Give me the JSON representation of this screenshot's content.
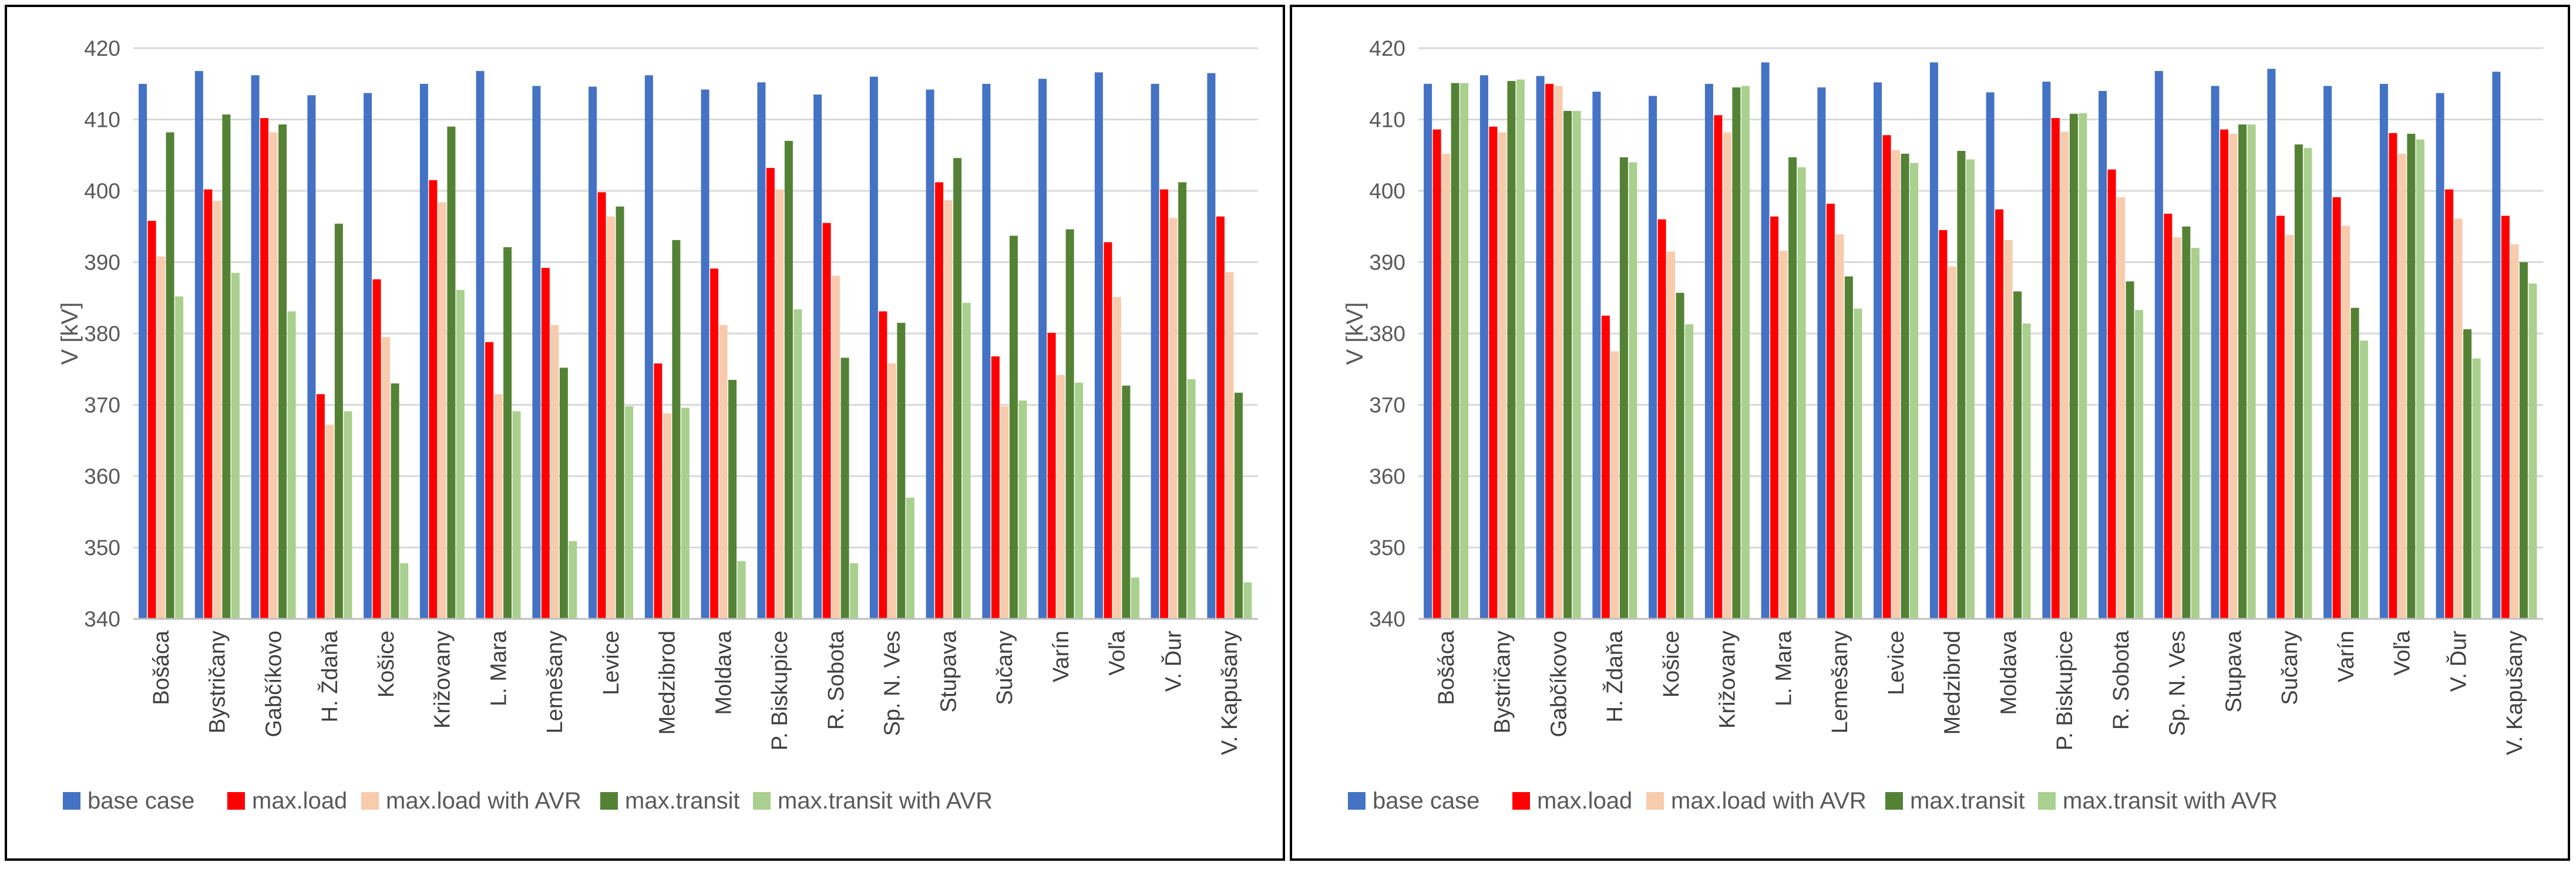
{
  "colors": {
    "base": "#4472C4",
    "max_load": "#FF0000",
    "max_load_avr": "#F8CBAD",
    "max_transit": "#548235",
    "max_transit_avr": "#A9D08E",
    "grid": "#D9D9D9",
    "text": "#595959"
  },
  "chart_data": [
    {
      "type": "bar",
      "ylabel": "V [kV]",
      "ylim": [
        340,
        420
      ],
      "yticks": [
        "340",
        "350",
        "360",
        "370",
        "380",
        "390",
        "400",
        "410",
        "420"
      ],
      "grid": true,
      "legend_position": "bottom",
      "categories": [
        "Bošáca",
        "Bystričany",
        "Gabčíkovo",
        "H. Ždaňa",
        "Košice",
        "Križovany",
        "L. Mara",
        "Lemešany",
        "Levice",
        "Medzibrod",
        "Moldava",
        "P. Biskupice",
        "R. Sobota",
        "Sp. N. Ves",
        "Stupava",
        "Sučany",
        "Varín",
        "Voľa",
        "V. Ďur",
        "V. Kapušany"
      ],
      "series": [
        {
          "name": "base case",
          "color_key": "base",
          "values": [
            415,
            416.8,
            416.2,
            413.4,
            413.7,
            415,
            416.8,
            414.7,
            414.6,
            416.2,
            414.2,
            415.2,
            413.5,
            416,
            414.2,
            415,
            415.7,
            416.6,
            415,
            416.5
          ]
        },
        {
          "name": "max.load",
          "color_key": "max_load",
          "values": [
            395.8,
            400.2,
            410.2,
            371.5,
            387.6,
            401.5,
            378.8,
            389.2,
            399.8,
            375.8,
            389.1,
            403.2,
            395.5,
            383.1,
            401.2,
            376.8,
            380.1,
            392.8,
            400.2,
            396.4
          ]
        },
        {
          "name": "max.load with AVR",
          "color_key": "max_load_avr",
          "values": [
            390.8,
            398.6,
            408.2,
            367.2,
            379.5,
            398.4,
            371.5,
            381.2,
            396.4,
            368.8,
            381.2,
            400.2,
            388.1,
            375.8,
            398.7,
            369.8,
            374.2,
            385.1,
            396.2,
            388.6
          ]
        },
        {
          "name": "max.transit",
          "color_key": "max_transit",
          "values": [
            408.2,
            410.7,
            409.3,
            395.4,
            373,
            409,
            392.1,
            375.2,
            397.8,
            393.1,
            373.5,
            407,
            376.6,
            381.5,
            404.6,
            393.7,
            394.6,
            372.7,
            401.2,
            371.7
          ]
        },
        {
          "name": "max.transit with AVR",
          "color_key": "max_transit_avr",
          "values": [
            385.2,
            388.5,
            383.1,
            369.1,
            347.8,
            386.1,
            369.1,
            350.9,
            369.8,
            369.6,
            348.1,
            383.4,
            347.8,
            357,
            384.3,
            370.6,
            373.1,
            345.8,
            373.6,
            345.1
          ]
        }
      ]
    },
    {
      "type": "bar",
      "ylabel": "V [kV]",
      "ylim": [
        340,
        420
      ],
      "yticks": [
        "340",
        "350",
        "360",
        "370",
        "380",
        "390",
        "400",
        "410",
        "420"
      ],
      "grid": true,
      "legend_position": "bottom",
      "categories": [
        "Bošáca",
        "Bystričany",
        "Gabčíkovo",
        "H. Ždaňa",
        "Košice",
        "Križovany",
        "L. Mara",
        "Lemešany",
        "Levice",
        "Medzibrod",
        "Moldava",
        "P. Biskupice",
        "R. Sobota",
        "Sp. N. Ves",
        "Stupava",
        "Sučany",
        "Varín",
        "Voľa",
        "V. Ďur",
        "V. Kapušany"
      ],
      "series": [
        {
          "name": "base case",
          "color_key": "base",
          "values": [
            415,
            416.2,
            416.1,
            413.9,
            413.3,
            415,
            418,
            414.5,
            415.2,
            418,
            413.8,
            415.3,
            414,
            416.8,
            414.7,
            417.1,
            414.7,
            415,
            413.7,
            416.7
          ]
        },
        {
          "name": "max.load",
          "color_key": "max_load",
          "values": [
            408.6,
            409,
            415,
            382.5,
            396,
            410.6,
            396.4,
            398.2,
            407.8,
            394.5,
            397.4,
            410.2,
            403,
            396.8,
            408.6,
            396.5,
            399.1,
            408.1,
            400.2,
            396.5
          ]
        },
        {
          "name": "max.load with AVR",
          "color_key": "max_load_avr",
          "values": [
            405.2,
            408.2,
            414.7,
            377.5,
            391.5,
            408.2,
            391.6,
            393.9,
            405.7,
            389.4,
            393.1,
            408.3,
            399.1,
            393.5,
            408,
            393.8,
            395.1,
            405.2,
            396.1,
            392.5
          ]
        },
        {
          "name": "max.transit",
          "color_key": "max_transit",
          "values": [
            415.1,
            415.4,
            411.2,
            404.7,
            385.7,
            414.5,
            404.7,
            388,
            405.2,
            405.6,
            385.9,
            410.8,
            387.3,
            395,
            409.3,
            406.5,
            383.6,
            408,
            380.6,
            390
          ]
        },
        {
          "name": "max.transit with AVR",
          "color_key": "max_transit_avr",
          "values": [
            415.1,
            415.6,
            411.2,
            404,
            381.3,
            414.7,
            403.3,
            383.5,
            403.9,
            404.4,
            381.4,
            410.9,
            383.3,
            392,
            409.3,
            406,
            379,
            407.2,
            376.5,
            387
          ]
        }
      ]
    }
  ]
}
